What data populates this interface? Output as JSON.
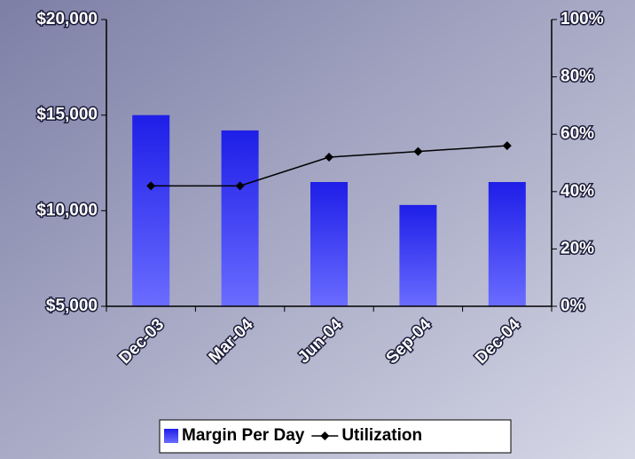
{
  "chart_data": {
    "type": "bar",
    "categories": [
      "Dec-03",
      "Mar-04",
      "Jun-04",
      "Sep-04",
      "Dec-04"
    ],
    "series": [
      {
        "name": "Margin Per Day",
        "type": "bar",
        "color": "#2828f0",
        "values": [
          15000,
          14200,
          11500,
          10300,
          11500
        ]
      },
      {
        "name": "Utilization",
        "type": "line",
        "axis": "y2",
        "color": "#000000",
        "values": [
          42,
          42,
          52,
          54,
          56
        ]
      }
    ],
    "ylim": [
      5000,
      20000
    ],
    "yticks": [
      {
        "value": 5000,
        "label": "$5,000"
      },
      {
        "value": 10000,
        "label": "$10,000"
      },
      {
        "value": 15000,
        "label": "$15,000"
      },
      {
        "value": 20000,
        "label": "$20,000"
      }
    ],
    "y2lim": [
      0,
      100
    ],
    "y2ticks": [
      {
        "value": 0,
        "label": "0%"
      },
      {
        "value": 20,
        "label": "20%"
      },
      {
        "value": 40,
        "label": "40%"
      },
      {
        "value": 60,
        "label": "60%"
      },
      {
        "value": 80,
        "label": "80%"
      },
      {
        "value": 100,
        "label": "100%"
      }
    ],
    "legend": "bottom"
  }
}
